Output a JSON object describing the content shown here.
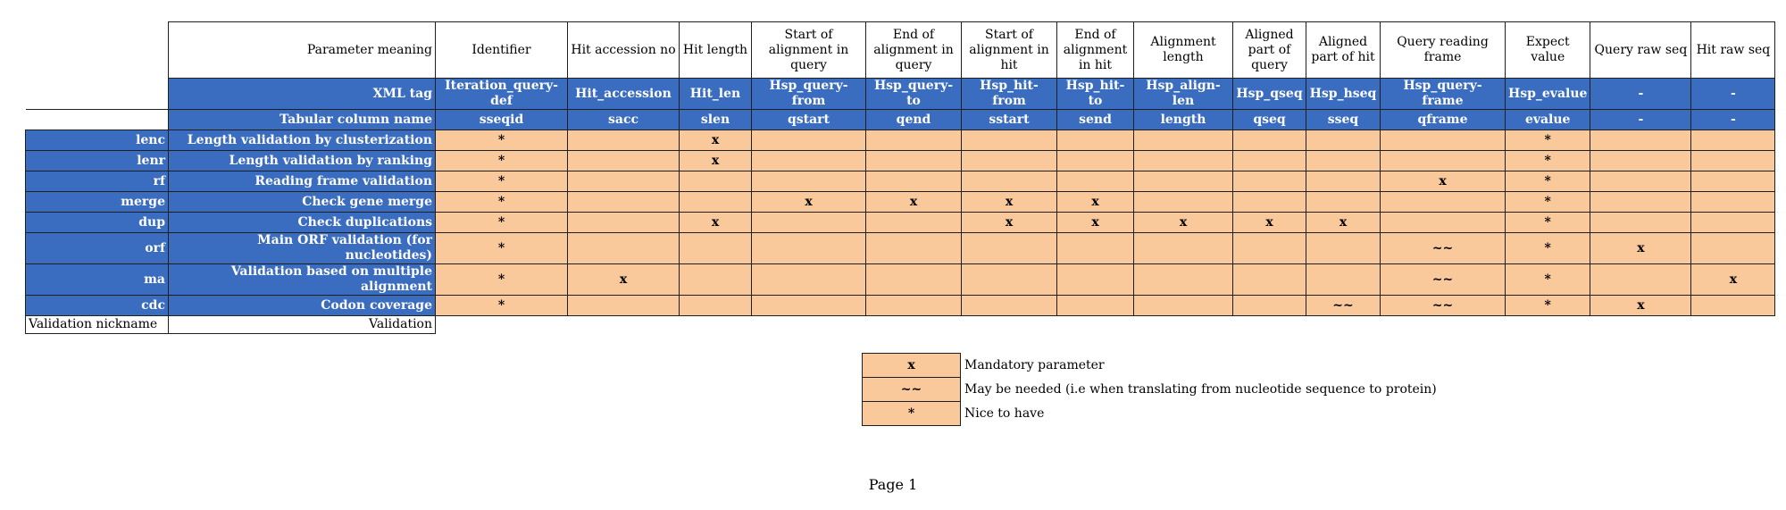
{
  "headers": {
    "parameter_meaning": "Parameter meaning",
    "xml_tag": "XML tag",
    "tabular_column_name": "Tabular column name",
    "validation_nickname": "Validation nickname",
    "validation": "Validation"
  },
  "columns": [
    {
      "meaning": "Identifier",
      "xml": "Iteration_query-def",
      "tab": "sseqid"
    },
    {
      "meaning": "Hit accession no",
      "xml": "Hit_accession",
      "tab": "sacc"
    },
    {
      "meaning": "Hit length",
      "xml": "Hit_len",
      "tab": "slen"
    },
    {
      "meaning": "Start of alignment in query",
      "xml": "Hsp_query-from",
      "tab": "qstart"
    },
    {
      "meaning": "End of alignment in query",
      "xml": "Hsp_query-to",
      "tab": "qend"
    },
    {
      "meaning": "Start of alignment in hit",
      "xml": "Hsp_hit-from",
      "tab": "sstart"
    },
    {
      "meaning": "End of alignment in hit",
      "xml": "Hsp_hit-to",
      "tab": "send"
    },
    {
      "meaning": "Alignment length",
      "xml": "Hsp_align-len",
      "tab": "length"
    },
    {
      "meaning": "Aligned part of query",
      "xml": "Hsp_qseq",
      "tab": "qseq"
    },
    {
      "meaning": "Aligned part of hit",
      "xml": "Hsp_hseq",
      "tab": "sseq"
    },
    {
      "meaning": "Query reading frame",
      "xml": "Hsp_query-frame",
      "tab": "qframe"
    },
    {
      "meaning": "Expect value",
      "xml": "Hsp_evalue",
      "tab": "evalue"
    },
    {
      "meaning": "Query raw seq",
      "xml": "-",
      "tab": "-"
    },
    {
      "meaning": "Hit raw seq",
      "xml": "-",
      "tab": "-"
    }
  ],
  "rows": [
    {
      "nick": "lenc",
      "name": "Length validation by clusterization",
      "cells": [
        "*",
        "",
        "x",
        "",
        "",
        "",
        "",
        "",
        "",
        "",
        "",
        "*",
        "",
        ""
      ]
    },
    {
      "nick": "lenr",
      "name": "Length validation by ranking",
      "cells": [
        "*",
        "",
        "x",
        "",
        "",
        "",
        "",
        "",
        "",
        "",
        "",
        "*",
        "",
        ""
      ]
    },
    {
      "nick": "rf",
      "name": "Reading frame validation",
      "cells": [
        "*",
        "",
        "",
        "",
        "",
        "",
        "",
        "",
        "",
        "",
        "x",
        "*",
        "",
        ""
      ]
    },
    {
      "nick": "merge",
      "name": "Check gene merge",
      "cells": [
        "*",
        "",
        "",
        "x",
        "x",
        "x",
        "x",
        "",
        "",
        "",
        "",
        "*",
        "",
        ""
      ]
    },
    {
      "nick": "dup",
      "name": "Check duplications",
      "cells": [
        "*",
        "",
        "x",
        "",
        "",
        "x",
        "x",
        "x",
        "x",
        "x",
        "",
        "*",
        "",
        ""
      ]
    },
    {
      "nick": "orf",
      "name": "Main ORF validation (for nucleotides)",
      "cells": [
        "*",
        "",
        "",
        "",
        "",
        "",
        "",
        "",
        "",
        "",
        "~~",
        "*",
        "x",
        ""
      ]
    },
    {
      "nick": "ma",
      "name": "Validation based on multiple alignment",
      "cells": [
        "*",
        "x",
        "",
        "",
        "",
        "",
        "",
        "",
        "",
        "",
        "~~",
        "*",
        "",
        "x"
      ]
    },
    {
      "nick": "cdc",
      "name": "Codon coverage",
      "cells": [
        "*",
        "",
        "",
        "",
        "",
        "",
        "",
        "",
        "",
        "~~",
        "~~",
        "*",
        "x",
        ""
      ]
    }
  ],
  "legend": [
    {
      "symbol": "x",
      "text": "Mandatory parameter"
    },
    {
      "symbol": "~~",
      "text": "May be needed (i.e when translating from nucleotide sequence to protein)"
    },
    {
      "symbol": "*",
      "text": "Nice to have"
    }
  ],
  "footer": {
    "page_label": "Page 1"
  }
}
